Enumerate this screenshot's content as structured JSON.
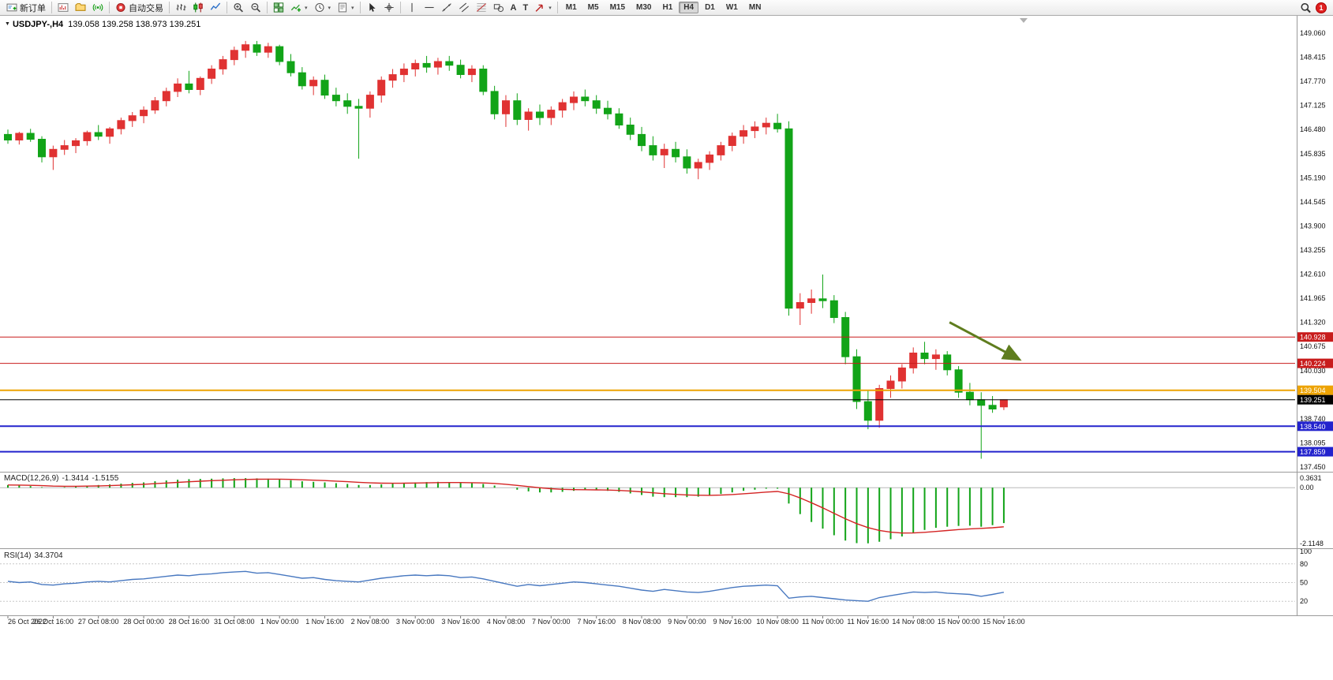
{
  "toolbar": {
    "caret_glyph": "▾",
    "items": [
      {
        "name": "new-order-button",
        "icon": "new-order",
        "label": "新订单"
      },
      {
        "type": "sep"
      },
      {
        "name": "new-chart-button",
        "icon": "new-chart"
      },
      {
        "name": "profiles-button",
        "icon": "profiles"
      },
      {
        "name": "signals-button",
        "icon": "signals"
      },
      {
        "type": "sep"
      },
      {
        "name": "autotrading-button",
        "icon": "autotrading",
        "label": "自动交易"
      },
      {
        "type": "sep"
      },
      {
        "name": "bar-chart-button",
        "icon": "bars"
      },
      {
        "name": "candlestick-chart-button",
        "icon": "candles"
      },
      {
        "name": "line-chart-button",
        "icon": "line"
      },
      {
        "type": "sep"
      },
      {
        "name": "zoom-in-button",
        "icon": "zoom-in"
      },
      {
        "name": "zoom-out-button",
        "icon": "zoom-out"
      },
      {
        "type": "sep"
      },
      {
        "name": "tile-windows-button",
        "icon": "tile"
      },
      {
        "name": "indicators-button",
        "icon": "indicators",
        "caret": true
      },
      {
        "name": "periods-button",
        "icon": "periods",
        "caret": true
      },
      {
        "name": "templates-button",
        "icon": "templates",
        "caret": true
      },
      {
        "type": "sep"
      },
      {
        "name": "cursor-button",
        "icon": "cursor"
      },
      {
        "name": "crosshair-button",
        "icon": "crosshair"
      },
      {
        "type": "sep"
      },
      {
        "name": "vertical-line-button",
        "icon": "vline"
      },
      {
        "name": "horizontal-line-button",
        "icon": "hline"
      },
      {
        "name": "trendline-button",
        "icon": "trendline"
      },
      {
        "name": "equidistant-channel-button",
        "icon": "channel"
      },
      {
        "name": "fibonacci-button",
        "icon": "fibo"
      },
      {
        "name": "shapes-button",
        "icon": "shapes"
      },
      {
        "name": "text-button",
        "icon": "text"
      },
      {
        "name": "label-button",
        "icon": "label"
      },
      {
        "name": "arrow-tools-button",
        "icon": "arrows",
        "caret": true
      },
      {
        "type": "sep"
      }
    ],
    "timeframes": {
      "items": [
        "M1",
        "M5",
        "M15",
        "M30",
        "H1",
        "H4",
        "D1",
        "W1",
        "MN"
      ],
      "active": "H4"
    },
    "notification": {
      "count": "1"
    }
  },
  "chart_header": {
    "collapse_glyph": "▼",
    "symbol_period": "USDJPY-,H4",
    "ohlc": "139.058 139.258 138.973 139.251"
  },
  "macd_header": {
    "name": "MACD(12,26,9)",
    "main_value": "-1.3414",
    "signal_value": "-1.5155"
  },
  "rsi_header": {
    "name": "RSI(14)",
    "value": "34.3704"
  },
  "chart_data": {
    "type": "candlestick",
    "symbol": "USDJPY-",
    "period": "H4",
    "colors": {
      "bull": "#e03232",
      "bear": "#12a418"
    },
    "price_axis_ticks": [
      "149.060",
      "148.415",
      "147.770",
      "147.125",
      "146.480",
      "145.835",
      "145.190",
      "144.545",
      "143.900",
      "143.255",
      "142.610",
      "141.965",
      "141.320",
      "140.675",
      "140.030",
      "139.385",
      "138.740",
      "138.095",
      "137.450"
    ],
    "hlines": [
      {
        "price": 140.928,
        "label": "140.928",
        "color": "#c81c1c",
        "width": 1
      },
      {
        "price": 140.224,
        "label": "140.224",
        "color": "#c81c1c",
        "width": 1
      },
      {
        "price": 139.504,
        "label": "139.504",
        "color": "#eda303",
        "width": 2
      },
      {
        "price": 138.54,
        "label": "138.540",
        "color": "#2323cd",
        "width": 2
      },
      {
        "price": 137.859,
        "label": "137.859",
        "color": "#2323cd",
        "width": 2
      }
    ],
    "current_price": {
      "price": 139.251,
      "label": "139.251",
      "color": "#000000"
    },
    "trend_arrow": {
      "from_bar": 83.2,
      "from_price": 141.32,
      "to_bar": 89.3,
      "to_price": 140.34,
      "color": "#5f7d1e"
    },
    "candles": [
      [
        146.35,
        146.48,
        146.1,
        146.2
      ],
      [
        146.2,
        146.42,
        146.08,
        146.38
      ],
      [
        146.38,
        146.5,
        146.15,
        146.22
      ],
      [
        146.22,
        146.3,
        145.6,
        145.75
      ],
      [
        145.75,
        146.05,
        145.4,
        145.95
      ],
      [
        145.95,
        146.2,
        145.8,
        146.05
      ],
      [
        146.05,
        146.25,
        145.85,
        146.18
      ],
      [
        146.18,
        146.45,
        146.05,
        146.4
      ],
      [
        146.4,
        146.6,
        146.2,
        146.3
      ],
      [
        146.3,
        146.55,
        146.1,
        146.5
      ],
      [
        146.5,
        146.8,
        146.35,
        146.72
      ],
      [
        146.72,
        146.95,
        146.55,
        146.85
      ],
      [
        146.85,
        147.1,
        146.65,
        147.0
      ],
      [
        147.0,
        147.35,
        146.9,
        147.25
      ],
      [
        147.25,
        147.6,
        147.1,
        147.5
      ],
      [
        147.5,
        147.85,
        147.35,
        147.7
      ],
      [
        147.7,
        148.05,
        147.45,
        147.55
      ],
      [
        147.55,
        147.9,
        147.4,
        147.85
      ],
      [
        147.85,
        148.2,
        147.7,
        148.1
      ],
      [
        148.1,
        148.45,
        147.95,
        148.35
      ],
      [
        148.35,
        148.7,
        148.2,
        148.6
      ],
      [
        148.6,
        148.85,
        148.4,
        148.75
      ],
      [
        148.75,
        148.85,
        148.45,
        148.55
      ],
      [
        148.55,
        148.8,
        148.4,
        148.7
      ],
      [
        148.7,
        148.75,
        148.2,
        148.3
      ],
      [
        148.3,
        148.5,
        147.9,
        148.0
      ],
      [
        148.0,
        148.15,
        147.55,
        147.65
      ],
      [
        147.65,
        147.9,
        147.4,
        147.8
      ],
      [
        147.8,
        147.95,
        147.3,
        147.4
      ],
      [
        147.4,
        147.6,
        147.1,
        147.25
      ],
      [
        147.25,
        147.45,
        146.9,
        147.1
      ],
      [
        147.1,
        147.3,
        145.7,
        147.05
      ],
      [
        147.05,
        147.5,
        146.8,
        147.4
      ],
      [
        147.4,
        147.9,
        147.2,
        147.8
      ],
      [
        147.8,
        148.1,
        147.6,
        147.95
      ],
      [
        147.95,
        148.25,
        147.75,
        148.1
      ],
      [
        148.1,
        148.35,
        147.9,
        148.25
      ],
      [
        148.25,
        148.45,
        148.0,
        148.15
      ],
      [
        148.15,
        148.4,
        147.95,
        148.3
      ],
      [
        148.3,
        148.45,
        148.05,
        148.2
      ],
      [
        148.2,
        148.35,
        147.85,
        147.95
      ],
      [
        147.95,
        148.2,
        147.75,
        148.1
      ],
      [
        148.1,
        148.2,
        147.4,
        147.5
      ],
      [
        147.5,
        147.65,
        146.75,
        146.9
      ],
      [
        146.9,
        147.4,
        146.55,
        147.25
      ],
      [
        147.25,
        147.45,
        146.6,
        146.75
      ],
      [
        146.75,
        147.05,
        146.45,
        146.95
      ],
      [
        146.95,
        147.15,
        146.6,
        146.8
      ],
      [
        146.8,
        147.1,
        146.6,
        147.0
      ],
      [
        147.0,
        147.3,
        146.8,
        147.2
      ],
      [
        147.2,
        147.5,
        147.0,
        147.35
      ],
      [
        147.35,
        147.55,
        147.1,
        147.25
      ],
      [
        147.25,
        147.4,
        146.9,
        147.05
      ],
      [
        147.05,
        147.25,
        146.75,
        146.9
      ],
      [
        146.9,
        147.05,
        146.5,
        146.6
      ],
      [
        146.6,
        146.8,
        146.2,
        146.35
      ],
      [
        146.35,
        146.55,
        145.9,
        146.05
      ],
      [
        146.05,
        146.3,
        145.65,
        145.8
      ],
      [
        145.8,
        146.1,
        145.45,
        145.95
      ],
      [
        145.95,
        146.15,
        145.6,
        145.75
      ],
      [
        145.75,
        145.95,
        145.3,
        145.45
      ],
      [
        145.45,
        145.7,
        145.15,
        145.6
      ],
      [
        145.6,
        145.9,
        145.4,
        145.8
      ],
      [
        145.8,
        146.15,
        145.65,
        146.05
      ],
      [
        146.05,
        146.4,
        145.9,
        146.3
      ],
      [
        146.3,
        146.6,
        146.1,
        146.45
      ],
      [
        146.45,
        146.7,
        146.25,
        146.55
      ],
      [
        146.55,
        146.8,
        146.35,
        146.65
      ],
      [
        146.65,
        146.9,
        146.4,
        146.5
      ],
      [
        146.5,
        146.7,
        141.5,
        141.7
      ],
      [
        141.7,
        142.1,
        141.25,
        141.85
      ],
      [
        141.85,
        142.2,
        141.55,
        141.95
      ],
      [
        141.95,
        142.6,
        141.7,
        141.9
      ],
      [
        141.9,
        142.05,
        141.3,
        141.45
      ],
      [
        141.45,
        141.6,
        140.2,
        140.4
      ],
      [
        140.4,
        140.6,
        139.0,
        139.2
      ],
      [
        139.2,
        139.5,
        138.46,
        138.7
      ],
      [
        138.7,
        139.65,
        138.5,
        139.55
      ],
      [
        139.55,
        139.9,
        139.3,
        139.75
      ],
      [
        139.75,
        140.2,
        139.55,
        140.1
      ],
      [
        140.1,
        140.65,
        139.95,
        140.5
      ],
      [
        140.5,
        140.8,
        140.2,
        140.35
      ],
      [
        140.35,
        140.6,
        140.05,
        140.45
      ],
      [
        140.45,
        140.55,
        139.9,
        140.05
      ],
      [
        140.05,
        140.15,
        139.3,
        139.45
      ],
      [
        139.45,
        139.7,
        139.1,
        139.25
      ],
      [
        139.25,
        139.45,
        137.67,
        139.1
      ],
      [
        139.1,
        139.35,
        138.9,
        139.0
      ],
      [
        139.058,
        139.258,
        138.973,
        139.251
      ]
    ],
    "macd": {
      "histogram_color": "#12a418",
      "signal_color": "#d42424",
      "axis_labels": [
        "0.3631",
        "0.00",
        "-2.1148"
      ],
      "scale_max": 0.3631,
      "scale_min": -2.1148,
      "values": [
        0.1,
        0.08,
        0.06,
        0.02,
        0.0,
        0.02,
        0.05,
        0.08,
        0.1,
        0.12,
        0.15,
        0.18,
        0.2,
        0.24,
        0.27,
        0.3,
        0.32,
        0.33,
        0.34,
        0.35,
        0.36,
        0.36,
        0.35,
        0.34,
        0.32,
        0.28,
        0.24,
        0.22,
        0.2,
        0.17,
        0.14,
        0.1,
        0.1,
        0.12,
        0.15,
        0.18,
        0.2,
        0.21,
        0.22,
        0.21,
        0.19,
        0.17,
        0.14,
        0.08,
        0.0,
        -0.08,
        -0.14,
        -0.18,
        -0.18,
        -0.16,
        -0.12,
        -0.1,
        -0.1,
        -0.12,
        -0.16,
        -0.22,
        -0.28,
        -0.34,
        -0.36,
        -0.36,
        -0.36,
        -0.34,
        -0.3,
        -0.24,
        -0.18,
        -0.12,
        -0.08,
        -0.04,
        -0.04,
        -0.6,
        -1.0,
        -1.3,
        -1.55,
        -1.8,
        -2.0,
        -2.1,
        -2.11,
        -2.05,
        -1.95,
        -1.85,
        -1.7,
        -1.6,
        -1.52,
        -1.48,
        -1.45,
        -1.44,
        -1.48,
        -1.42,
        -1.3414
      ]
    },
    "rsi": {
      "line_color": "#4878c0",
      "axis_labels": [
        "100",
        "80",
        "50",
        "20"
      ],
      "levels": [
        80,
        50,
        20
      ],
      "values": [
        52,
        50,
        51,
        47,
        46,
        48,
        49,
        51,
        52,
        51,
        53,
        55,
        56,
        58,
        60,
        62,
        61,
        63,
        64,
        66,
        67,
        68,
        65,
        66,
        63,
        60,
        57,
        58,
        55,
        53,
        52,
        51,
        54,
        57,
        59,
        61,
        62,
        61,
        62,
        61,
        58,
        59,
        56,
        52,
        48,
        44,
        47,
        45,
        47,
        49,
        51,
        50,
        48,
        46,
        44,
        41,
        38,
        36,
        39,
        37,
        35,
        34,
        36,
        39,
        42,
        44,
        45,
        46,
        45,
        25,
        27,
        28,
        26,
        24,
        22,
        21,
        20,
        26,
        29,
        32,
        35,
        34,
        35,
        33,
        32,
        31,
        28,
        31,
        34.37
      ]
    },
    "time_labels": [
      "26 Oct 2022",
      "26 Oct 16:00",
      "27 Oct 08:00",
      "28 Oct 00:00",
      "28 Oct 16:00",
      "31 Oct 08:00",
      "1 Nov 00:00",
      "1 Nov 16:00",
      "2 Nov 08:00",
      "3 Nov 00:00",
      "3 Nov 16:00",
      "4 Nov 08:00",
      "7 Nov 00:00",
      "7 Nov 16:00",
      "8 Nov 08:00",
      "9 Nov 00:00",
      "9 Nov 16:00",
      "10 Nov 08:00",
      "11 Nov 00:00",
      "11 Nov 16:00",
      "14 Nov 08:00",
      "15 Nov 00:00",
      "15 Nov 16:00"
    ]
  }
}
